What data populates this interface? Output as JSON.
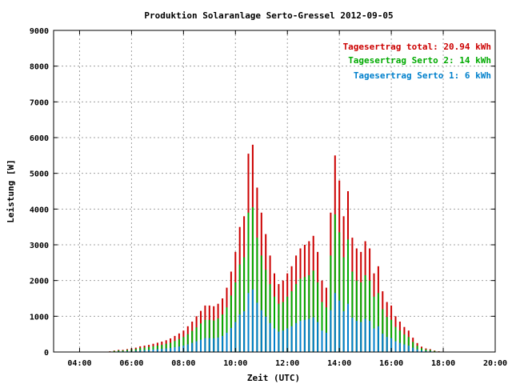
{
  "chart_data": {
    "type": "bar",
    "title": "Produktion Solaranlage Serto-Gressel 2012-09-05",
    "xlabel": "Zeit (UTC)",
    "ylabel": "Leistung [W]",
    "xlim_hours": [
      3,
      20
    ],
    "ylim": [
      0,
      9000
    ],
    "x_ticks": [
      "04:00",
      "06:00",
      "08:00",
      "10:00",
      "12:00",
      "14:00",
      "16:00",
      "18:00",
      "20:00"
    ],
    "y_ticks": [
      "0",
      "1000",
      "2000",
      "3000",
      "4000",
      "5000",
      "6000",
      "7000",
      "8000",
      "9000"
    ],
    "grid": true,
    "legend_position": "top-right",
    "legend": [
      {
        "text": "Tagesertrag total: 20.94 kWh",
        "color": "#cc0000"
      },
      {
        "text": "Tagesertrag Serto 2: 14 kWh",
        "color": "#00aa00"
      },
      {
        "text": "Tagesertrag Serto 1: 6 kWh",
        "color": "#0080cc"
      }
    ],
    "stacking": "bars drawn overlapping from baseline: total (red) >= Serto 2 (green) >= Serto 1 (blue)",
    "series": [
      {
        "name": "Tagesertrag total",
        "color": "#cc0000",
        "points": [
          [
            "05:10",
            20
          ],
          [
            "05:20",
            40
          ],
          [
            "05:30",
            60
          ],
          [
            "05:40",
            60
          ],
          [
            "05:50",
            80
          ],
          [
            "06:00",
            100
          ],
          [
            "06:10",
            120
          ],
          [
            "06:20",
            160
          ],
          [
            "06:30",
            180
          ],
          [
            "06:40",
            200
          ],
          [
            "06:50",
            230
          ],
          [
            "07:00",
            260
          ],
          [
            "07:10",
            290
          ],
          [
            "07:20",
            330
          ],
          [
            "07:30",
            380
          ],
          [
            "07:40",
            450
          ],
          [
            "07:50",
            520
          ],
          [
            "08:00",
            600
          ],
          [
            "08:10",
            720
          ],
          [
            "08:20",
            850
          ],
          [
            "08:30",
            1000
          ],
          [
            "08:40",
            1150
          ],
          [
            "08:50",
            1300
          ],
          [
            "09:00",
            1300
          ],
          [
            "09:10",
            1280
          ],
          [
            "09:20",
            1350
          ],
          [
            "09:30",
            1500
          ],
          [
            "09:40",
            1800
          ],
          [
            "09:50",
            2250
          ],
          [
            "10:00",
            2800
          ],
          [
            "10:10",
            3500
          ],
          [
            "10:20",
            3800
          ],
          [
            "10:30",
            5550
          ],
          [
            "10:40",
            5800
          ],
          [
            "10:50",
            4600
          ],
          [
            "11:00",
            3900
          ],
          [
            "11:10",
            3300
          ],
          [
            "11:20",
            2700
          ],
          [
            "11:30",
            2200
          ],
          [
            "11:40",
            1900
          ],
          [
            "11:50",
            2000
          ],
          [
            "12:00",
            2200
          ],
          [
            "12:10",
            2400
          ],
          [
            "12:20",
            2700
          ],
          [
            "12:30",
            2900
          ],
          [
            "12:40",
            3000
          ],
          [
            "12:50",
            3100
          ],
          [
            "13:00",
            3250
          ],
          [
            "13:10",
            2800
          ],
          [
            "13:20",
            2000
          ],
          [
            "13:30",
            1800
          ],
          [
            "13:40",
            3900
          ],
          [
            "13:50",
            5500
          ],
          [
            "14:00",
            4800
          ],
          [
            "14:10",
            3800
          ],
          [
            "14:20",
            4500
          ],
          [
            "14:30",
            3200
          ],
          [
            "14:40",
            2900
          ],
          [
            "14:50",
            2800
          ],
          [
            "15:00",
            3100
          ],
          [
            "15:10",
            2900
          ],
          [
            "15:20",
            2200
          ],
          [
            "15:30",
            2400
          ],
          [
            "15:40",
            1700
          ],
          [
            "15:50",
            1400
          ],
          [
            "16:00",
            1300
          ],
          [
            "16:10",
            1000
          ],
          [
            "16:20",
            850
          ],
          [
            "16:30",
            700
          ],
          [
            "16:40",
            600
          ],
          [
            "16:50",
            400
          ],
          [
            "17:00",
            250
          ],
          [
            "17:10",
            150
          ],
          [
            "17:20",
            100
          ],
          [
            "17:30",
            80
          ],
          [
            "17:40",
            40
          ],
          [
            "17:50",
            20
          ]
        ]
      },
      {
        "name": "Tagesertrag Serto 2",
        "color": "#00aa00",
        "points": [
          [
            "05:10",
            14
          ],
          [
            "05:20",
            28
          ],
          [
            "05:30",
            42
          ],
          [
            "05:40",
            42
          ],
          [
            "05:50",
            56
          ],
          [
            "06:00",
            70
          ],
          [
            "06:10",
            84
          ],
          [
            "06:20",
            112
          ],
          [
            "06:30",
            126
          ],
          [
            "06:40",
            140
          ],
          [
            "06:50",
            160
          ],
          [
            "07:00",
            180
          ],
          [
            "07:10",
            200
          ],
          [
            "07:20",
            230
          ],
          [
            "07:30",
            260
          ],
          [
            "07:40",
            310
          ],
          [
            "07:50",
            360
          ],
          [
            "08:00",
            420
          ],
          [
            "08:10",
            500
          ],
          [
            "08:20",
            590
          ],
          [
            "08:30",
            690
          ],
          [
            "08:40",
            800
          ],
          [
            "08:50",
            900
          ],
          [
            "09:00",
            900
          ],
          [
            "09:10",
            880
          ],
          [
            "09:20",
            940
          ],
          [
            "09:30",
            1050
          ],
          [
            "09:40",
            1250
          ],
          [
            "09:50",
            1580
          ],
          [
            "10:00",
            1950
          ],
          [
            "10:10",
            2450
          ],
          [
            "10:20",
            2650
          ],
          [
            "10:30",
            3900
          ],
          [
            "10:40",
            4050
          ],
          [
            "10:50",
            3200
          ],
          [
            "11:00",
            2700
          ],
          [
            "11:10",
            2300
          ],
          [
            "11:20",
            1900
          ],
          [
            "11:30",
            1550
          ],
          [
            "11:40",
            1350
          ],
          [
            "11:50",
            1400
          ],
          [
            "12:00",
            1550
          ],
          [
            "12:10",
            1700
          ],
          [
            "12:20",
            1900
          ],
          [
            "12:30",
            2050
          ],
          [
            "12:40",
            2100
          ],
          [
            "12:50",
            2150
          ],
          [
            "13:00",
            2280
          ],
          [
            "13:10",
            1950
          ],
          [
            "13:20",
            1400
          ],
          [
            "13:30",
            1250
          ],
          [
            "13:40",
            2700
          ],
          [
            "13:50",
            3850
          ],
          [
            "14:00",
            3350
          ],
          [
            "14:10",
            2650
          ],
          [
            "14:20",
            3150
          ],
          [
            "14:30",
            2250
          ],
          [
            "14:40",
            2000
          ],
          [
            "14:50",
            1950
          ],
          [
            "15:00",
            2150
          ],
          [
            "15:10",
            2000
          ],
          [
            "15:20",
            1550
          ],
          [
            "15:30",
            1650
          ],
          [
            "15:40",
            1200
          ],
          [
            "15:50",
            980
          ],
          [
            "16:00",
            900
          ],
          [
            "16:10",
            700
          ],
          [
            "16:20",
            600
          ],
          [
            "16:30",
            490
          ],
          [
            "16:40",
            420
          ],
          [
            "16:50",
            280
          ],
          [
            "17:00",
            175
          ],
          [
            "17:10",
            105
          ],
          [
            "17:20",
            70
          ],
          [
            "17:30",
            56
          ],
          [
            "17:40",
            28
          ],
          [
            "17:50",
            14
          ]
        ]
      },
      {
        "name": "Tagesertrag Serto 1",
        "color": "#0080cc",
        "points": [
          [
            "05:10",
            6
          ],
          [
            "05:20",
            12
          ],
          [
            "05:30",
            18
          ],
          [
            "05:40",
            18
          ],
          [
            "05:50",
            24
          ],
          [
            "06:00",
            30
          ],
          [
            "06:10",
            36
          ],
          [
            "06:20",
            48
          ],
          [
            "06:30",
            54
          ],
          [
            "06:40",
            60
          ],
          [
            "06:50",
            70
          ],
          [
            "07:00",
            80
          ],
          [
            "07:10",
            90
          ],
          [
            "07:20",
            100
          ],
          [
            "07:30",
            115
          ],
          [
            "07:40",
            135
          ],
          [
            "07:50",
            155
          ],
          [
            "08:00",
            180
          ],
          [
            "08:10",
            215
          ],
          [
            "08:20",
            255
          ],
          [
            "08:30",
            300
          ],
          [
            "08:40",
            345
          ],
          [
            "08:50",
            390
          ],
          [
            "09:00",
            390
          ],
          [
            "09:10",
            385
          ],
          [
            "09:20",
            405
          ],
          [
            "09:30",
            450
          ],
          [
            "09:40",
            540
          ],
          [
            "09:50",
            675
          ],
          [
            "10:00",
            840
          ],
          [
            "10:10",
            1050
          ],
          [
            "10:20",
            1140
          ],
          [
            "10:30",
            1650
          ],
          [
            "10:40",
            1750
          ],
          [
            "10:50",
            1380
          ],
          [
            "11:00",
            1170
          ],
          [
            "11:10",
            990
          ],
          [
            "11:20",
            810
          ],
          [
            "11:30",
            660
          ],
          [
            "11:40",
            570
          ],
          [
            "11:50",
            600
          ],
          [
            "12:00",
            660
          ],
          [
            "12:10",
            720
          ],
          [
            "12:20",
            810
          ],
          [
            "12:30",
            870
          ],
          [
            "12:40",
            900
          ],
          [
            "12:50",
            930
          ],
          [
            "13:00",
            970
          ],
          [
            "13:10",
            840
          ],
          [
            "13:20",
            600
          ],
          [
            "13:30",
            540
          ],
          [
            "13:40",
            1170
          ],
          [
            "13:50",
            1650
          ],
          [
            "14:00",
            1440
          ],
          [
            "14:10",
            1140
          ],
          [
            "14:20",
            1350
          ],
          [
            "14:30",
            960
          ],
          [
            "14:40",
            870
          ],
          [
            "14:50",
            840
          ],
          [
            "15:00",
            930
          ],
          [
            "15:10",
            870
          ],
          [
            "15:20",
            660
          ],
          [
            "15:30",
            720
          ],
          [
            "15:40",
            510
          ],
          [
            "15:50",
            420
          ],
          [
            "16:00",
            390
          ],
          [
            "16:10",
            300
          ],
          [
            "16:20",
            255
          ],
          [
            "16:30",
            210
          ],
          [
            "16:40",
            180
          ],
          [
            "16:50",
            120
          ],
          [
            "17:00",
            75
          ],
          [
            "17:10",
            45
          ],
          [
            "17:20",
            30
          ],
          [
            "17:30",
            24
          ],
          [
            "17:40",
            12
          ],
          [
            "17:50",
            6
          ]
        ]
      }
    ]
  }
}
